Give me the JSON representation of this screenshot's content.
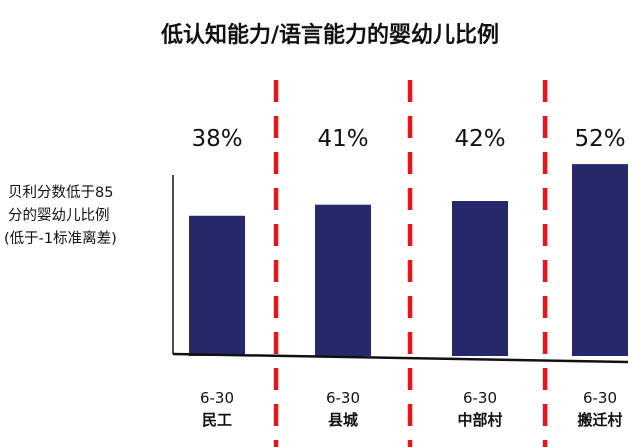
{
  "chart_data": {
    "type": "bar",
    "title": "低认知能力/语言能力的婴幼儿比例",
    "ylabel_lines": [
      "贝利分数低于85",
      "分的婴幼儿比例",
      "(低于-1标准离差)"
    ],
    "categories": [
      {
        "age": "6-30",
        "name": "民工"
      },
      {
        "age": "6-30",
        "name": "县城"
      },
      {
        "age": "6-30",
        "name": "中部村"
      },
      {
        "age": "6-30",
        "name": "搬迁村"
      }
    ],
    "values": [
      38,
      41,
      42,
      52
    ],
    "value_labels": [
      "38%",
      "41%",
      "42%",
      "52%"
    ],
    "value_unit": "%",
    "ylim": [
      0,
      62
    ],
    "grid": false,
    "legend": "none",
    "colors": {
      "bar": "#25296a",
      "divider": "#e8141c",
      "axis": "#111111",
      "text": "#111111"
    }
  }
}
